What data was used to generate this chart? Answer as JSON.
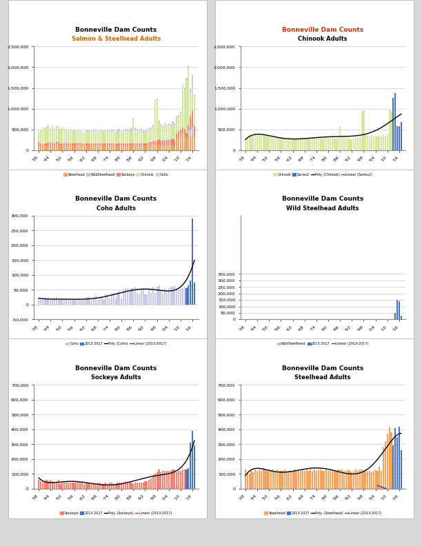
{
  "years": [
    1938,
    1939,
    1940,
    1941,
    1942,
    1943,
    1944,
    1945,
    1946,
    1947,
    1948,
    1949,
    1950,
    1951,
    1952,
    1953,
    1954,
    1955,
    1956,
    1957,
    1958,
    1959,
    1960,
    1961,
    1962,
    1963,
    1964,
    1965,
    1966,
    1967,
    1968,
    1969,
    1970,
    1971,
    1972,
    1973,
    1974,
    1975,
    1976,
    1977,
    1978,
    1979,
    1980,
    1981,
    1982,
    1983,
    1984,
    1985,
    1986,
    1987,
    1988,
    1989,
    1990,
    1991,
    1992,
    1993,
    1994,
    1995,
    1996,
    1997,
    1998,
    1999,
    2000,
    2001,
    2002,
    2003,
    2004,
    2005,
    2006,
    2007,
    2008,
    2009,
    2010,
    2011,
    2012,
    2013,
    2014,
    2015,
    2016,
    2017
  ],
  "chinook": [
    240000,
    310000,
    380000,
    340000,
    370000,
    400000,
    350000,
    390000,
    340000,
    360000,
    380000,
    340000,
    370000,
    340000,
    320000,
    290000,
    320000,
    290000,
    310000,
    280000,
    300000,
    280000,
    290000,
    270000,
    300000,
    280000,
    280000,
    290000,
    290000,
    300000,
    290000,
    280000,
    300000,
    290000,
    300000,
    280000,
    300000,
    280000,
    290000,
    270000,
    290000,
    290000,
    290000,
    280000,
    290000,
    300000,
    280000,
    300000,
    570000,
    310000,
    320000,
    300000,
    310000,
    270000,
    270000,
    290000,
    290000,
    320000,
    330000,
    940000,
    960000,
    390000,
    360000,
    310000,
    370000,
    330000,
    340000,
    330000,
    360000,
    330000,
    380000,
    350000,
    380000,
    970000,
    940000,
    1260000,
    1370000,
    580000,
    570000,
    680000
  ],
  "steelhead": [
    130000,
    110000,
    100000,
    120000,
    110000,
    130000,
    120000,
    130000,
    120000,
    140000,
    130000,
    120000,
    130000,
    120000,
    130000,
    120000,
    130000,
    120000,
    120000,
    120000,
    130000,
    120000,
    120000,
    120000,
    120000,
    130000,
    120000,
    130000,
    120000,
    130000,
    120000,
    130000,
    120000,
    130000,
    120000,
    130000,
    120000,
    130000,
    130000,
    120000,
    120000,
    130000,
    120000,
    130000,
    120000,
    120000,
    120000,
    130000,
    130000,
    130000,
    120000,
    120000,
    130000,
    120000,
    110000,
    120000,
    130000,
    120000,
    130000,
    130000,
    120000,
    130000,
    120000,
    120000,
    110000,
    120000,
    130000,
    120000,
    150000,
    120000,
    280000,
    320000,
    370000,
    420000,
    380000,
    290000,
    410000,
    350000,
    420000,
    260000
  ],
  "wild_steelhead": [
    0,
    0,
    0,
    0,
    0,
    0,
    0,
    0,
    0,
    0,
    0,
    0,
    0,
    0,
    0,
    0,
    0,
    0,
    0,
    0,
    0,
    0,
    0,
    0,
    0,
    0,
    0,
    0,
    0,
    0,
    0,
    0,
    0,
    0,
    0,
    0,
    0,
    0,
    0,
    0,
    0,
    0,
    0,
    0,
    0,
    0,
    0,
    0,
    0,
    0,
    0,
    0,
    0,
    0,
    0,
    0,
    0,
    0,
    0,
    0,
    0,
    0,
    0,
    0,
    0,
    0,
    0,
    0,
    0,
    0,
    0,
    0,
    0,
    0,
    0,
    0,
    50000,
    150000,
    140000,
    30000
  ],
  "sockeye": [
    60000,
    50000,
    50000,
    50000,
    60000,
    50000,
    60000,
    50000,
    40000,
    50000,
    60000,
    30000,
    40000,
    40000,
    50000,
    40000,
    40000,
    40000,
    40000,
    40000,
    50000,
    40000,
    40000,
    30000,
    40000,
    40000,
    30000,
    30000,
    40000,
    30000,
    40000,
    40000,
    30000,
    30000,
    40000,
    30000,
    40000,
    40000,
    30000,
    30000,
    40000,
    40000,
    40000,
    40000,
    50000,
    40000,
    50000,
    40000,
    30000,
    40000,
    40000,
    40000,
    40000,
    40000,
    50000,
    50000,
    60000,
    70000,
    90000,
    100000,
    110000,
    130000,
    110000,
    120000,
    120000,
    120000,
    120000,
    120000,
    130000,
    130000,
    110000,
    120000,
    120000,
    130000,
    130000,
    130000,
    140000,
    310000,
    390000,
    290000
  ],
  "coho": [
    20000,
    15000,
    20000,
    25000,
    20000,
    25000,
    15000,
    20000,
    20000,
    25000,
    15000,
    15000,
    20000,
    15000,
    20000,
    15000,
    15000,
    15000,
    15000,
    15000,
    20000,
    15000,
    15000,
    15000,
    25000,
    25000,
    25000,
    15000,
    25000,
    30000,
    15000,
    25000,
    25000,
    15000,
    35000,
    35000,
    20000,
    40000,
    40000,
    20000,
    40000,
    45000,
    20000,
    50000,
    55000,
    55000,
    50000,
    55000,
    55000,
    60000,
    40000,
    35000,
    50000,
    55000,
    35000,
    35000,
    55000,
    40000,
    60000,
    40000,
    60000,
    65000,
    45000,
    40000,
    55000,
    40000,
    55000,
    60000,
    60000,
    65000,
    55000,
    50000,
    55000,
    55000,
    60000,
    55000,
    65000,
    80000,
    290000,
    75000
  ],
  "page_bg": "#d9d9d9",
  "chart_bg": "#ffffff",
  "color_steelhead": "#f4a460",
  "color_wild_steelhead": "#b0c4de",
  "color_sockeye": "#fa8072",
  "color_chinook": "#d4e8a0",
  "color_coho": "#c8c8e8",
  "color_recent": "#4472c4",
  "color_poly": "#000000",
  "color_linear_red": "#cc3300",
  "color_linear_purple": "#7030a0",
  "title1": "Bonneville Dam Counts",
  "subtitle1": "Salmon & Steelhead Adults",
  "subtitle1_color": "#cc6600",
  "title2": "Bonneville Dam Counts",
  "title2_color": "#cc3300",
  "subtitle2": "Chinook Adults",
  "title3": "Bonneville Dam Counts",
  "subtitle3": "Coho Adults",
  "title4": "Bonneville Dam Counts",
  "subtitle4": "Wild Steelhead Adults",
  "title5": "Bonneville Dam Counts",
  "subtitle5": "Sockeye Adults",
  "title6": "Bonneville Dam Counts",
  "subtitle6": "Steelhead Adults"
}
